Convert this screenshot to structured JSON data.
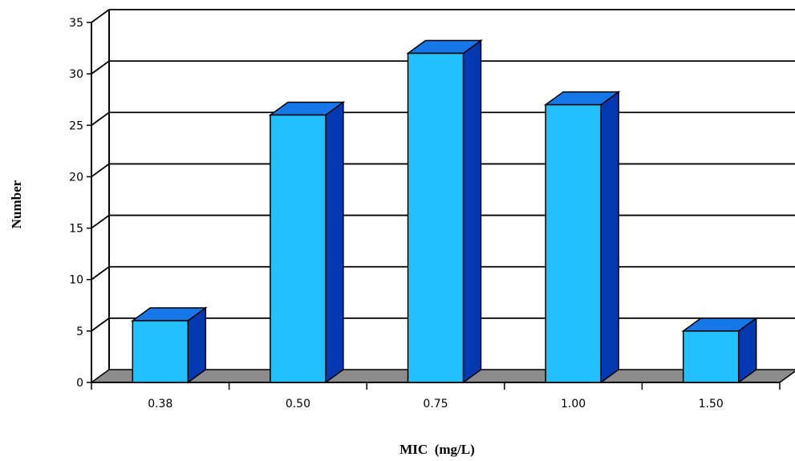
{
  "chart_data": {
    "type": "bar",
    "style": "3d-column",
    "title": "",
    "xlabel": "MIC  (mg/L)",
    "ylabel": "Number",
    "categories": [
      "0.38",
      "0.50",
      "0.75",
      "1.00",
      "1.50"
    ],
    "values": [
      6,
      26,
      32,
      27,
      5
    ],
    "ylim": [
      0,
      35
    ],
    "yticks": [
      "0",
      "5",
      "10",
      "15",
      "20",
      "25",
      "30",
      "35"
    ],
    "grid": true,
    "legend": "none",
    "colors": {
      "bar_front": "#22C0FF",
      "bar_top": "#1577E8",
      "bar_side": "#0238B0",
      "floor": "#8C8C8C",
      "grid": "#000000"
    }
  }
}
